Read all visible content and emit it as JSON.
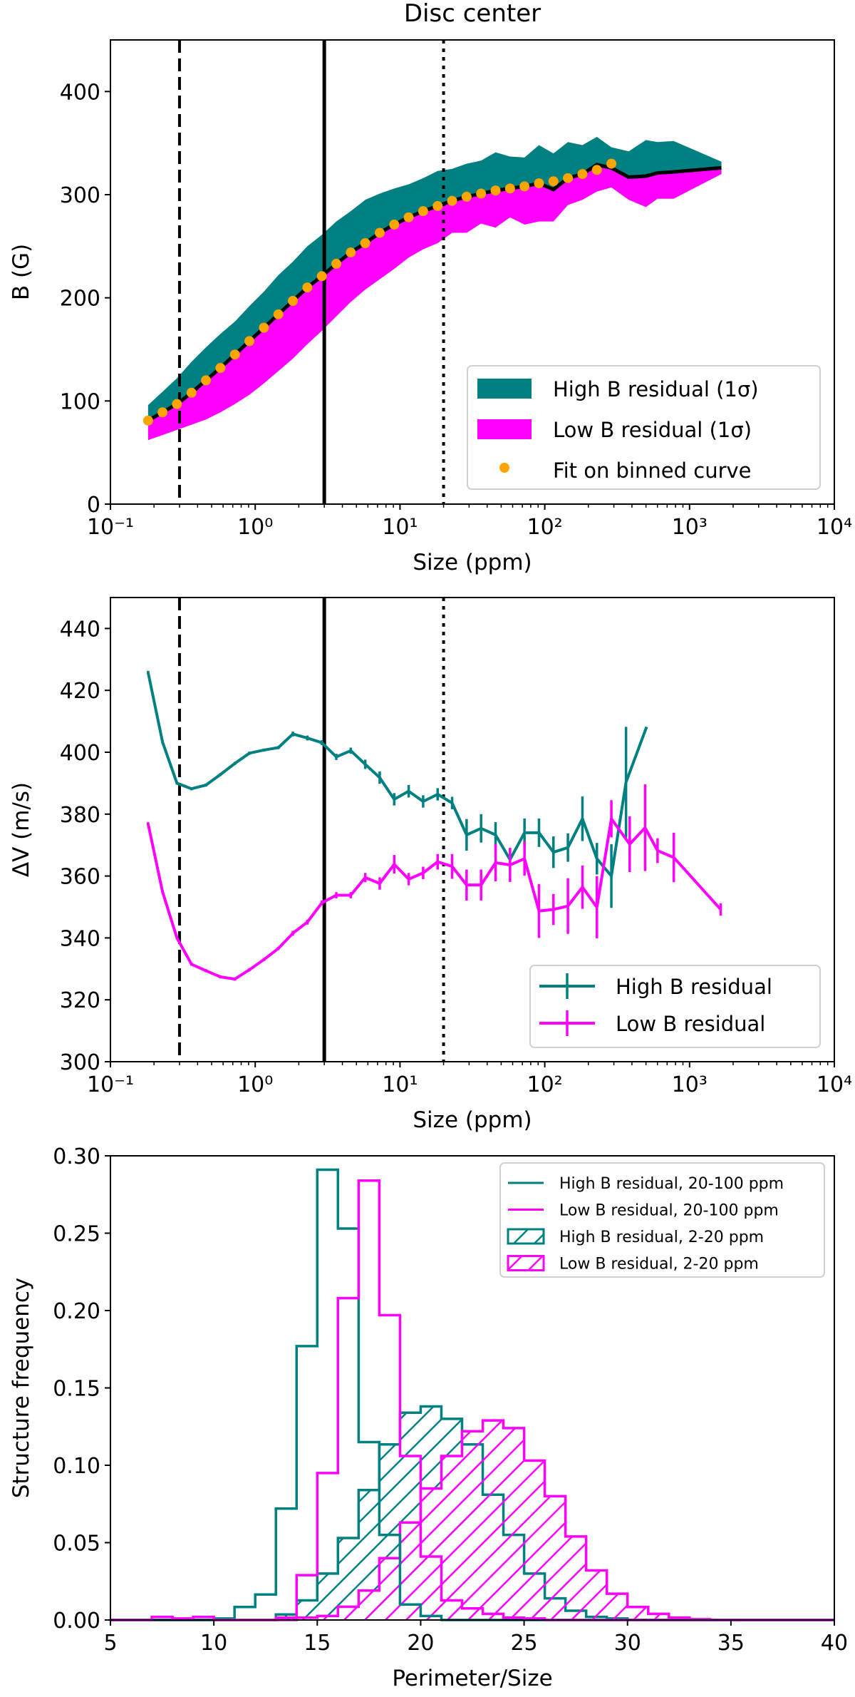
{
  "colors": {
    "high": "#008080",
    "low": "#ff00ff",
    "fit": "#ffa500",
    "median": "#000000"
  },
  "chart_data": [
    {
      "type": "area",
      "title": "Disc center",
      "xlabel": "Size (ppm)",
      "ylabel": "B (G)",
      "xscale": "log",
      "xlim": [
        0.1,
        10000
      ],
      "ylim": [
        0,
        450
      ],
      "xticklabels": [
        "10⁻¹",
        "10⁰",
        "10¹",
        "10²",
        "10³",
        "10⁴"
      ],
      "xticks": [
        0.1,
        1,
        10,
        100,
        1000,
        10000
      ],
      "yticks": [
        0,
        100,
        200,
        300,
        400
      ],
      "yticklabels": [
        "0",
        "100",
        "200",
        "300",
        "400"
      ],
      "grid": false,
      "legend_position": "lower-right",
      "reference_lines": [
        {
          "x": 0.3,
          "style": "dashed"
        },
        {
          "x": 3,
          "style": "solid"
        },
        {
          "x": 20,
          "style": "dotted"
        }
      ],
      "x": [
        0.182,
        0.229,
        0.288,
        0.363,
        0.457,
        0.575,
        0.724,
        0.912,
        1.148,
        1.445,
        1.82,
        2.291,
        2.884,
        3.631,
        4.571,
        5.754,
        7.244,
        9.12,
        11.48,
        14.45,
        18.2,
        22.91,
        28.84,
        36.31,
        45.71,
        57.54,
        72.44,
        91.2,
        114.8,
        144.5,
        182,
        229.1,
        288.4,
        380,
        500,
        600,
        776,
        1660
      ],
      "median": [
        81,
        89,
        97,
        108,
        120,
        132,
        145,
        158,
        171,
        184,
        197,
        210,
        221,
        233,
        244,
        253,
        263,
        271,
        278,
        284,
        289,
        294,
        298,
        301,
        304,
        306,
        308,
        311,
        305,
        316,
        320,
        329,
        326,
        317,
        318,
        321,
        322,
        326
      ],
      "series": [
        {
          "name": "High B residual (1σ)",
          "kind": "band-upper",
          "values": [
            96,
            109,
            122,
            138,
            152,
            165,
            177,
            192,
            206,
            222,
            235,
            250,
            261,
            274,
            284,
            295,
            301,
            306,
            310,
            316,
            323,
            325,
            330,
            333,
            341,
            337,
            336,
            348,
            340,
            351,
            348,
            356,
            346,
            342,
            353,
            351,
            352,
            332
          ]
        },
        {
          "name": "Low B residual (1σ)",
          "kind": "band-lower",
          "values": [
            62,
            67,
            72,
            77,
            82,
            89,
            97,
            106,
            117,
            129,
            141,
            155,
            168,
            182,
            196,
            208,
            218,
            228,
            239,
            247,
            253,
            263,
            263,
            272,
            268,
            278,
            271,
            274,
            274,
            290,
            295,
            303,
            307,
            295,
            288,
            296,
            296,
            320
          ]
        },
        {
          "name": "Fit on binned curve",
          "kind": "points",
          "x": [
            0.182,
            0.229,
            0.288,
            0.363,
            0.457,
            0.575,
            0.724,
            0.912,
            1.148,
            1.445,
            1.82,
            2.291,
            2.884,
            3.631,
            4.571,
            5.754,
            7.244,
            9.12,
            11.48,
            14.45,
            18.2,
            22.91,
            28.84,
            36.31,
            45.71,
            57.54,
            72.44,
            91.2,
            114.8,
            144.5,
            182,
            229.1,
            288.4
          ],
          "values": [
            81,
            89,
            97,
            108,
            120,
            132,
            145,
            158,
            171,
            184,
            197,
            210,
            221,
            233,
            244,
            253,
            263,
            271,
            278,
            284,
            289,
            294,
            298,
            301,
            304,
            306,
            308,
            311,
            313,
            316,
            320,
            324,
            330
          ]
        }
      ]
    },
    {
      "type": "line",
      "xlabel": "Size (ppm)",
      "ylabel": "ΔV (m/s)",
      "xscale": "log",
      "xlim": [
        0.1,
        10000
      ],
      "ylim": [
        300,
        450
      ],
      "xticklabels": [
        "10⁻¹",
        "10⁰",
        "10¹",
        "10²",
        "10³",
        "10⁴"
      ],
      "xticks": [
        0.1,
        1,
        10,
        100,
        1000,
        10000
      ],
      "yticks": [
        300,
        320,
        340,
        360,
        380,
        400,
        420,
        440
      ],
      "yticklabels": [
        "300",
        "320",
        "340",
        "360",
        "380",
        "400",
        "420",
        "440"
      ],
      "grid": false,
      "legend_position": "lower-right",
      "reference_lines": [
        {
          "x": 0.3,
          "style": "dashed"
        },
        {
          "x": 3,
          "style": "solid"
        },
        {
          "x": 20,
          "style": "dotted"
        }
      ],
      "series": [
        {
          "name": "High B residual",
          "color": "#008080",
          "x": [
            0.182,
            0.229,
            0.288,
            0.363,
            0.457,
            0.575,
            0.724,
            0.912,
            1.148,
            1.445,
            1.82,
            2.291,
            2.884,
            3.631,
            4.571,
            5.754,
            7.244,
            9.12,
            11.48,
            14.45,
            18.2,
            22.91,
            28.84,
            36.31,
            45.71,
            57.54,
            72.44,
            91.2,
            114.8,
            144.5,
            182,
            229.1,
            288.4,
            364,
            505
          ],
          "values": [
            425.8,
            403.3,
            390,
            388.2,
            389.4,
            392.8,
            396.4,
            399.7,
            400.7,
            401.5,
            405.9,
            404.6,
            403.1,
            398.5,
            400.5,
            396.1,
            391.8,
            384.8,
            387.4,
            384.1,
            386.4,
            383.6,
            373.3,
            375.4,
            373.3,
            365.3,
            374,
            374,
            367.7,
            369.2,
            378.5,
            365.6,
            360,
            390.3,
            408.2
          ],
          "errors": [
            0.5,
            0.5,
            0.5,
            0.5,
            0.5,
            0.5,
            0.5,
            0.5,
            0.5,
            0.5,
            0.8,
            0.8,
            0.8,
            1,
            1,
            1.5,
            2,
            2,
            2,
            2,
            2,
            2,
            5.1,
            4.6,
            4.1,
            3.6,
            4.6,
            4.6,
            5.1,
            4.6,
            7.2,
            5.1,
            10.3,
            17.9,
            0
          ]
        },
        {
          "name": "Low B residual",
          "color": "#ff00ff",
          "x": [
            0.182,
            0.229,
            0.288,
            0.363,
            0.457,
            0.575,
            0.724,
            0.912,
            1.148,
            1.445,
            1.82,
            2.291,
            2.884,
            3.631,
            4.571,
            5.754,
            7.244,
            9.12,
            11.48,
            14.45,
            18.2,
            22.91,
            28.84,
            36.31,
            45.71,
            57.54,
            72.44,
            91.2,
            114.8,
            144.5,
            182,
            229.1,
            288.4,
            386,
            493,
            601,
            778,
            1641
          ],
          "values": [
            376.9,
            354.9,
            340,
            331.5,
            329.4,
            327.4,
            326.7,
            329.7,
            333,
            336.6,
            341.5,
            345.1,
            351.3,
            353.8,
            353.8,
            359.5,
            357.6,
            363.8,
            359,
            361,
            364.6,
            363.1,
            357.1,
            357.1,
            364.3,
            363.6,
            365.6,
            348.7,
            349.2,
            350.3,
            356.4,
            349.9,
            378.5,
            370.3,
            375.6,
            368.2,
            366,
            349.2
          ],
          "errors": [
            0.5,
            0.5,
            0.5,
            0.5,
            0.5,
            0.5,
            0.5,
            0.5,
            0.5,
            0.5,
            0.8,
            0.8,
            0.8,
            1,
            1,
            1.5,
            2,
            3,
            2,
            2,
            2.5,
            4,
            5,
            5,
            6,
            5.5,
            5.5,
            8.7,
            5,
            9,
            7,
            10,
            6,
            9,
            14,
            4,
            8,
            2
          ]
        }
      ]
    },
    {
      "type": "histogram",
      "xlabel": "Perimeter/Size",
      "ylabel": "Structure frequency",
      "xlim": [
        5,
        40
      ],
      "ylim": [
        0,
        0.3
      ],
      "xticks": [
        5,
        10,
        15,
        20,
        25,
        30,
        35,
        40
      ],
      "xticklabels": [
        "5",
        "10",
        "15",
        "20",
        "25",
        "30",
        "35",
        "40"
      ],
      "yticks": [
        0,
        0.05,
        0.1,
        0.15,
        0.2,
        0.25,
        0.3
      ],
      "yticklabels": [
        "0.00",
        "0.05",
        "0.10",
        "0.15",
        "0.20",
        "0.25",
        "0.30"
      ],
      "grid": false,
      "legend_position": "top-right",
      "bin_start": 5,
      "bin_width": 1,
      "series": [
        {
          "name": "High B residual, 20-100 ppm",
          "color": "#008080",
          "hatch": false,
          "values": [
            0,
            0,
            0,
            0,
            0,
            0.001,
            0.0084,
            0.0165,
            0.072,
            0.177,
            0.291,
            0.253,
            0.115,
            0.055,
            0.01,
            0.0026,
            0,
            0,
            0,
            0,
            0,
            0,
            0,
            0,
            0,
            0,
            0,
            0,
            0,
            0,
            0,
            0,
            0,
            0,
            0
          ]
        },
        {
          "name": "Low B residual, 20-100 ppm",
          "color": "#ff00ff",
          "hatch": false,
          "values": [
            0,
            0,
            0.002,
            0.001,
            0.002,
            0,
            0,
            0,
            0.0015,
            0.029,
            0.095,
            0.208,
            0.284,
            0.197,
            0.106,
            0.041,
            0.0127,
            0.0075,
            0.004,
            0.0015,
            0.001,
            0,
            0,
            0,
            0,
            0,
            0,
            0,
            0,
            0,
            0,
            0,
            0,
            0,
            0
          ]
        },
        {
          "name": "High B residual, 2-20 ppm",
          "color": "#008080",
          "hatch": true,
          "values": [
            0,
            0,
            0,
            0,
            0,
            0,
            0,
            0,
            0.0036,
            0.0127,
            0.03,
            0.053,
            0.084,
            0.1135,
            0.134,
            0.138,
            0.13,
            0.1135,
            0.081,
            0.055,
            0.03,
            0.014,
            0.006,
            0.002,
            0.001,
            0,
            0,
            0,
            0,
            0,
            0,
            0,
            0,
            0,
            0
          ]
        },
        {
          "name": "Low B residual, 2-20 ppm",
          "color": "#ff00ff",
          "hatch": true,
          "values": [
            0,
            0,
            0,
            0,
            0,
            0,
            0,
            0,
            0,
            0.0015,
            0.0026,
            0.0086,
            0.019,
            0.04,
            0.063,
            0.085,
            0.106,
            0.122,
            0.129,
            0.124,
            0.103,
            0.08,
            0.054,
            0.032,
            0.017,
            0.0084,
            0.004,
            0.0015,
            0.0005,
            0,
            0,
            0,
            0,
            0,
            0
          ]
        }
      ]
    }
  ]
}
